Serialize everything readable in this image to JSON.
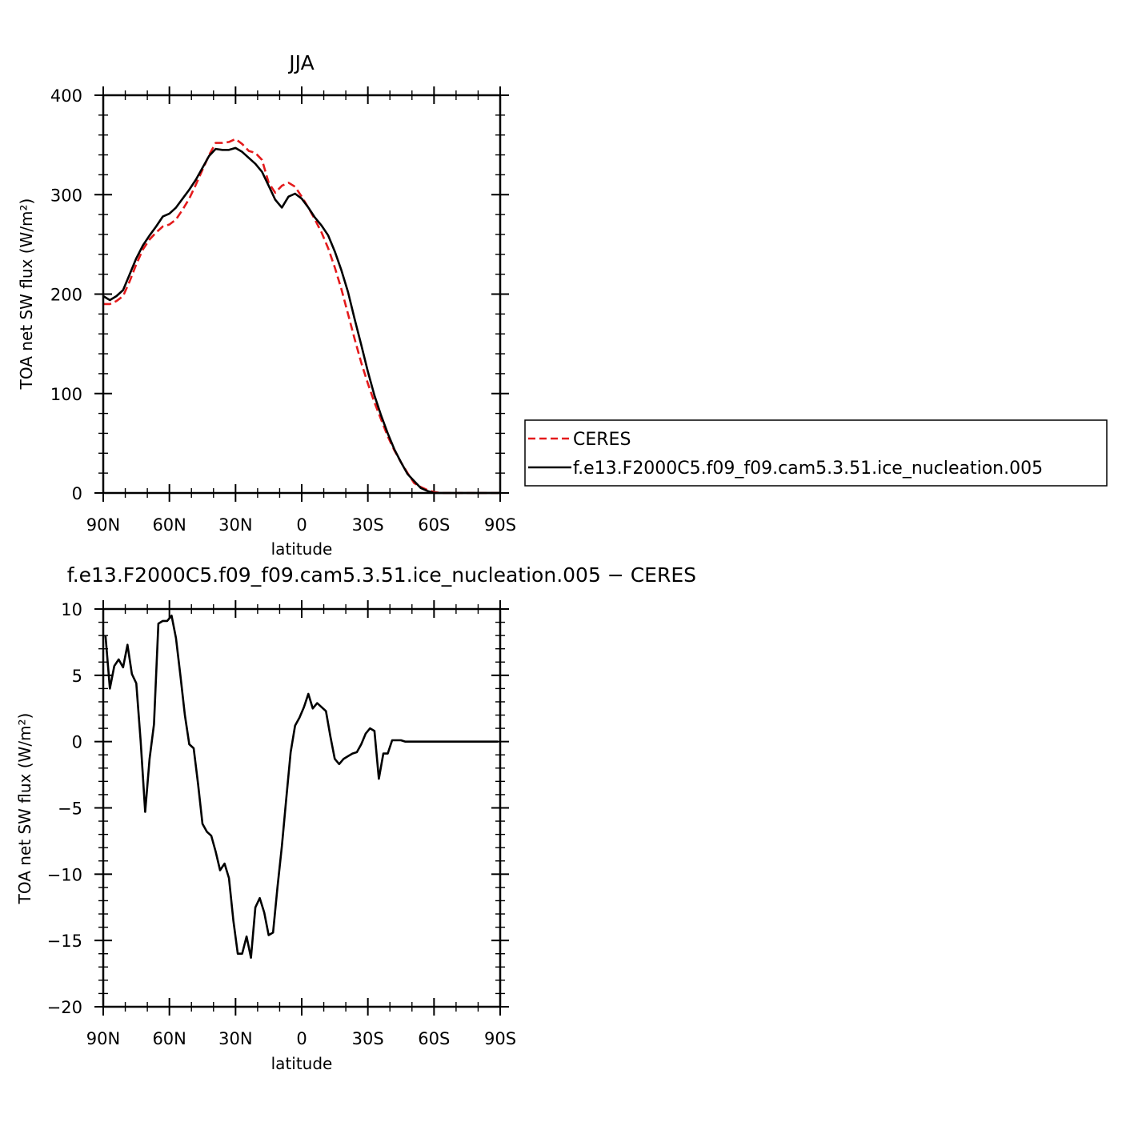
{
  "chart_data": [
    {
      "type": "line",
      "title": "JJA",
      "xlabel": "latitude",
      "ylabel": "TOA net SW flux (W/m²)",
      "xlim": [
        90,
        -90
      ],
      "ylim": [
        0,
        400
      ],
      "xticks": [
        90,
        60,
        30,
        0,
        -30,
        -60,
        -90
      ],
      "xtick_labels": [
        "90N",
        "60N",
        "30N",
        "0",
        "30S",
        "60S",
        "90S"
      ],
      "yticks": [
        0,
        100,
        200,
        300,
        400
      ],
      "ytick_labels": [
        "0",
        "100",
        "200",
        "300",
        "400"
      ],
      "grid": false,
      "legend": "right",
      "series": [
        {
          "name": "CERES",
          "color": "#e41a1c",
          "dash": "dashed",
          "x": [
            90,
            87,
            84,
            81,
            78,
            75,
            72,
            69,
            66,
            63,
            60,
            57,
            54,
            51,
            48,
            45,
            42,
            39,
            36,
            33,
            30,
            27,
            24,
            21,
            18,
            15,
            12,
            9,
            6,
            3,
            0,
            -3,
            -6,
            -9,
            -12,
            -15,
            -18,
            -21,
            -24,
            -27,
            -30,
            -33,
            -36,
            -39,
            -42,
            -45,
            -48,
            -51,
            -54,
            -57,
            -60,
            -63,
            -66,
            -69,
            -72,
            -75,
            -78,
            -81,
            -84,
            -87,
            -90
          ],
          "y": [
            190,
            190,
            193,
            198,
            213,
            230,
            245,
            255,
            262,
            268,
            270,
            275,
            285,
            296,
            310,
            325,
            340,
            352,
            352,
            353,
            356,
            351,
            344,
            342,
            335,
            312,
            302,
            309,
            312,
            308,
            298,
            287,
            275,
            262,
            246,
            227,
            205,
            180,
            155,
            131,
            110,
            91,
            74,
            57,
            43,
            31,
            20,
            10,
            6,
            3,
            1,
            0,
            0,
            0,
            0,
            0,
            0,
            0,
            0,
            0,
            0
          ]
        },
        {
          "name": "f.e13.F2000C5.f09_f09.cam5.3.51.ice_nucleation.005",
          "color": "#000000",
          "dash": "solid",
          "x": [
            90,
            87,
            84,
            81,
            78,
            75,
            72,
            69,
            66,
            63,
            60,
            57,
            54,
            51,
            48,
            45,
            42,
            39,
            36,
            33,
            30,
            27,
            24,
            21,
            18,
            15,
            12,
            9,
            6,
            3,
            0,
            -3,
            -6,
            -9,
            -12,
            -15,
            -18,
            -21,
            -24,
            -27,
            -30,
            -33,
            -36,
            -39,
            -42,
            -45,
            -48,
            -51,
            -54,
            -57,
            -60,
            -63,
            -66,
            -69,
            -72,
            -75,
            -78,
            -81,
            -84,
            -87,
            -90
          ],
          "y": [
            198,
            194,
            198,
            204,
            220,
            236,
            249,
            259,
            268,
            278,
            281,
            287,
            296,
            305,
            315,
            327,
            339,
            346,
            345,
            345,
            347,
            343,
            337,
            331,
            323,
            309,
            295,
            287,
            298,
            301,
            296,
            287,
            277,
            269,
            259,
            243,
            224,
            202,
            175,
            149,
            122,
            98,
            78,
            60,
            44,
            31,
            19,
            12,
            5,
            2,
            0,
            0,
            0,
            0,
            0,
            0,
            0,
            0,
            0,
            0,
            0
          ]
        }
      ]
    },
    {
      "type": "line",
      "title": "f.e13.F2000C5.f09_f09.cam5.3.51.ice_nucleation.005 − CERES",
      "xlabel": "latitude",
      "ylabel": "TOA net SW flux (W/m²)",
      "xlim": [
        90,
        -90
      ],
      "ylim": [
        -20,
        10
      ],
      "xticks": [
        90,
        60,
        30,
        0,
        -30,
        -60,
        -90
      ],
      "xtick_labels": [
        "90N",
        "60N",
        "30N",
        "0",
        "30S",
        "60S",
        "90S"
      ],
      "yticks": [
        -20,
        -15,
        -10,
        -5,
        0,
        5,
        10
      ],
      "ytick_labels": [
        "−20",
        "−15",
        "−10",
        "−5",
        "0",
        "5",
        "10"
      ],
      "grid": false,
      "series": [
        {
          "color": "#000000",
          "dash": "solid",
          "x": [
            89,
            87,
            85,
            83,
            81,
            79,
            77,
            75,
            73,
            71,
            69,
            67,
            65,
            63,
            61,
            59,
            57,
            55,
            53,
            51,
            49,
            47,
            45,
            43,
            41,
            39,
            37,
            35,
            33,
            31,
            29,
            27,
            25,
            23,
            21,
            19,
            17,
            15,
            13,
            11,
            9,
            7,
            5,
            3,
            1,
            -1,
            -3,
            -5,
            -7,
            -9,
            -11,
            -13,
            -15,
            -17,
            -19,
            -21,
            -23,
            -25,
            -27,
            -29,
            -31,
            -33,
            -35,
            -37,
            -39,
            -41,
            -43,
            -45,
            -47,
            -49,
            -51,
            -53,
            -55,
            -57,
            -59,
            -61,
            -63,
            -65,
            -67,
            -69,
            -71,
            -73,
            -75,
            -77,
            -79,
            -81,
            -83,
            -85,
            -87,
            -89
          ],
          "y": [
            8,
            4,
            5.7,
            6.2,
            5.6,
            7.3,
            5.1,
            4.4,
            0,
            -5.3,
            -1.3,
            1.3,
            8.9,
            9.1,
            9.1,
            9.5,
            7.8,
            5,
            2,
            -0.2,
            -0.5,
            -3.2,
            -6.2,
            -6.8,
            -7.1,
            -8.3,
            -9.7,
            -9.2,
            -10.3,
            -13.5,
            -16,
            -16,
            -14.7,
            -16.3,
            -12.5,
            -11.8,
            -12.9,
            -14.6,
            -14.4,
            -11,
            -7.9,
            -4.3,
            -0.8,
            1.2,
            1.8,
            2.6,
            3.6,
            2.5,
            2.9,
            2.6,
            2.3,
            0.4,
            -1.3,
            -1.7,
            -1.3,
            -1.1,
            -0.9,
            -0.8,
            -0.2,
            0.6,
            1,
            0.8,
            -2.8,
            -0.9,
            -0.9,
            0.1,
            0.1,
            0.1,
            0,
            0,
            0,
            0,
            0,
            0,
            0,
            0,
            0,
            0,
            0,
            0,
            0,
            0,
            0,
            0,
            0,
            0,
            0,
            0,
            0,
            0
          ]
        }
      ]
    }
  ]
}
